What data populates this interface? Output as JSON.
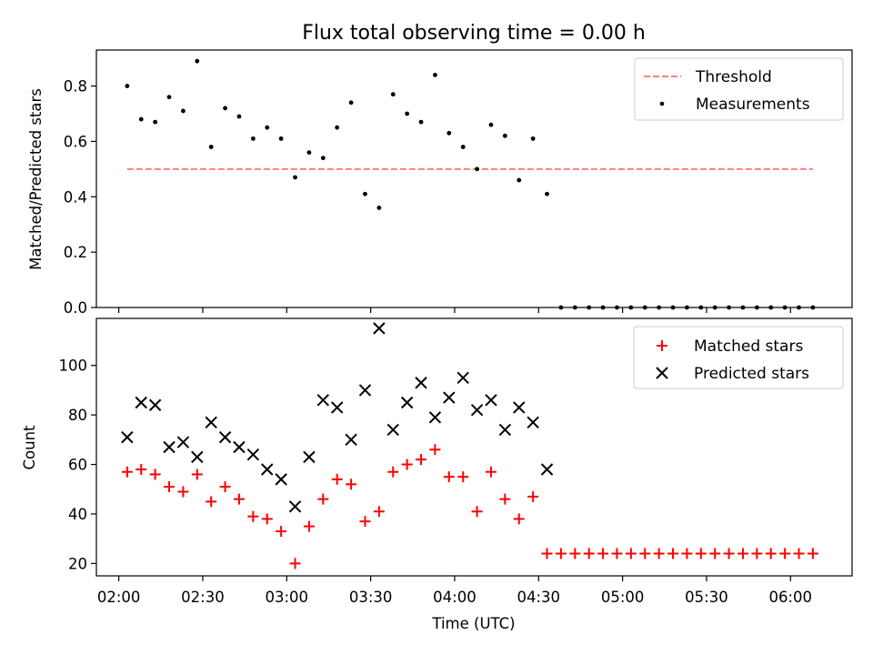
{
  "chart_data": [
    {
      "type": "scatter",
      "title": "Flux total observing time = 0.00 h",
      "ylabel": "Matched/Predicted stars",
      "xlabel": "",
      "xlim": [
        "01:52",
        "06:22"
      ],
      "ylim": [
        0,
        0.93
      ],
      "yticks": [
        0.0,
        0.2,
        0.4,
        0.6,
        0.8
      ],
      "ytick_labels": [
        "0.0",
        "0.2",
        "0.4",
        "0.6",
        "0.8"
      ],
      "grid": false,
      "legend_position": "top-right",
      "series": [
        {
          "name": "Threshold",
          "kind": "dashed-line",
          "color": "#ff7f7f",
          "x": [
            "02:03",
            "06:08"
          ],
          "y": [
            0.5,
            0.5
          ]
        },
        {
          "name": "Measurements",
          "kind": "dot",
          "color": "#000000",
          "x": [
            "02:03",
            "02:08",
            "02:13",
            "02:18",
            "02:23",
            "02:28",
            "02:33",
            "02:38",
            "02:43",
            "02:48",
            "02:53",
            "02:58",
            "03:03",
            "03:08",
            "03:13",
            "03:18",
            "03:23",
            "03:28",
            "03:33",
            "03:38",
            "03:43",
            "03:48",
            "03:53",
            "03:58",
            "04:03",
            "04:08",
            "04:13",
            "04:18",
            "04:23",
            "04:28",
            "04:33",
            "04:38",
            "04:43",
            "04:48",
            "04:53",
            "04:58",
            "05:03",
            "05:08",
            "05:13",
            "05:18",
            "05:23",
            "05:28",
            "05:33",
            "05:38",
            "05:43",
            "05:48",
            "05:53",
            "05:58",
            "06:03",
            "06:08"
          ],
          "y": [
            0.8,
            0.68,
            0.67,
            0.76,
            0.71,
            0.89,
            0.58,
            0.72,
            0.69,
            0.61,
            0.65,
            0.61,
            0.47,
            0.56,
            0.54,
            0.65,
            0.74,
            0.41,
            0.36,
            0.77,
            0.7,
            0.67,
            0.84,
            0.63,
            0.58,
            0.5,
            0.66,
            0.62,
            0.46,
            0.61,
            0.41,
            0,
            0,
            0,
            0,
            0,
            0,
            0,
            0,
            0,
            0,
            0,
            0,
            0,
            0,
            0,
            0,
            0,
            0,
            0
          ]
        }
      ]
    },
    {
      "type": "scatter",
      "title": "",
      "xlabel": "Time (UTC)",
      "ylabel": "Count",
      "xlim": [
        "01:52",
        "06:22"
      ],
      "ylim": [
        15,
        119
      ],
      "xticks": [
        "02:00",
        "02:30",
        "03:00",
        "03:30",
        "04:00",
        "04:30",
        "05:00",
        "05:30",
        "06:00"
      ],
      "yticks": [
        20,
        40,
        60,
        80,
        100
      ],
      "ytick_labels": [
        "20",
        "40",
        "60",
        "80",
        "100"
      ],
      "grid": false,
      "legend_position": "top-right",
      "series": [
        {
          "name": "Matched stars",
          "kind": "plus",
          "color": "#ff0000",
          "x": [
            "02:03",
            "02:08",
            "02:13",
            "02:18",
            "02:23",
            "02:28",
            "02:33",
            "02:38",
            "02:43",
            "02:48",
            "02:53",
            "02:58",
            "03:03",
            "03:08",
            "03:13",
            "03:18",
            "03:23",
            "03:28",
            "03:33",
            "03:38",
            "03:43",
            "03:48",
            "03:53",
            "03:58",
            "04:03",
            "04:08",
            "04:13",
            "04:18",
            "04:23",
            "04:28",
            "04:33",
            "04:38",
            "04:43",
            "04:48",
            "04:53",
            "04:58",
            "05:03",
            "05:08",
            "05:13",
            "05:18",
            "05:23",
            "05:28",
            "05:33",
            "05:38",
            "05:43",
            "05:48",
            "05:53",
            "05:58",
            "06:03",
            "06:08"
          ],
          "y": [
            57,
            58,
            56,
            51,
            49,
            56,
            45,
            51,
            46,
            39,
            38,
            33,
            20,
            35,
            46,
            54,
            52,
            37,
            41,
            57,
            60,
            62,
            66,
            55,
            55,
            41,
            57,
            46,
            38,
            47,
            24,
            24,
            24,
            24,
            24,
            24,
            24,
            24,
            24,
            24,
            24,
            24,
            24,
            24,
            24,
            24,
            24,
            24,
            24,
            24
          ]
        },
        {
          "name": "Predicted stars",
          "kind": "cross",
          "color": "#000000",
          "x": [
            "02:03",
            "02:08",
            "02:13",
            "02:18",
            "02:23",
            "02:28",
            "02:33",
            "02:38",
            "02:43",
            "02:48",
            "02:53",
            "02:58",
            "03:03",
            "03:08",
            "03:13",
            "03:18",
            "03:23",
            "03:28",
            "03:33",
            "03:38",
            "03:43",
            "03:48",
            "03:53",
            "03:58",
            "04:03",
            "04:08",
            "04:13",
            "04:18",
            "04:23",
            "04:28",
            "04:33"
          ],
          "y": [
            71,
            85,
            84,
            67,
            69,
            63,
            77,
            71,
            67,
            64,
            58,
            54,
            43,
            63,
            86,
            83,
            70,
            90,
            115,
            74,
            85,
            93,
            79,
            87,
            95,
            82,
            86,
            74,
            83,
            77,
            58
          ]
        }
      ]
    }
  ]
}
